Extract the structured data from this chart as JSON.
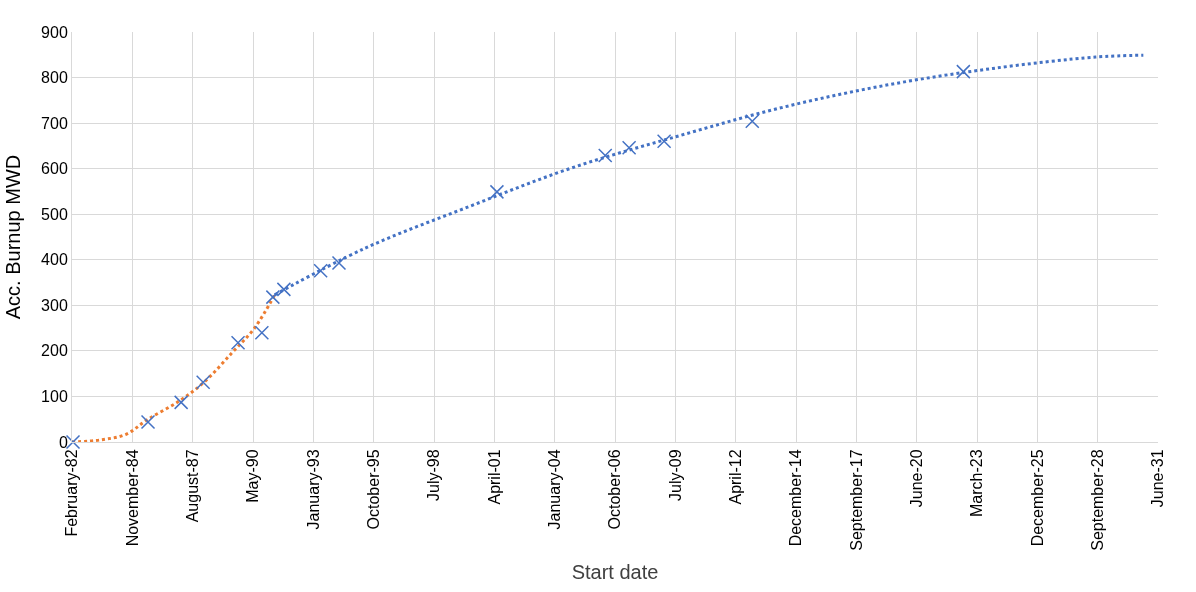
{
  "chart_data": {
    "type": "scatter",
    "xlabel": "Start date",
    "ylabel": "Acc. Burnup MWD",
    "xlim": [
      "1982-02-18",
      "2031-06-01"
    ],
    "xticks": [
      {
        "value": "1982-02-18",
        "label": "February-82"
      },
      {
        "value": "1984-11-14",
        "label": "November-84"
      },
      {
        "value": "1987-08-11",
        "label": "August-87"
      },
      {
        "value": "1990-05-07",
        "label": "May-90"
      },
      {
        "value": "1993-01-31",
        "label": "January-93"
      },
      {
        "value": "1995-10-28",
        "label": "October-95"
      },
      {
        "value": "1998-07-24",
        "label": "July-98"
      },
      {
        "value": "2001-04-19",
        "label": "April-01"
      },
      {
        "value": "2004-01-14",
        "label": "January-04"
      },
      {
        "value": "2006-10-10",
        "label": "October-06"
      },
      {
        "value": "2009-07-06",
        "label": "July-09"
      },
      {
        "value": "2012-04-01",
        "label": "April-12"
      },
      {
        "value": "2014-12-27",
        "label": "December-14"
      },
      {
        "value": "2017-09-22",
        "label": "September-17"
      },
      {
        "value": "2020-06-18",
        "label": "June-20"
      },
      {
        "value": "2023-03-15",
        "label": "March-23"
      },
      {
        "value": "2025-12-09",
        "label": "December-25"
      },
      {
        "value": "2028-09-04",
        "label": "September-28"
      },
      {
        "value": "2031-06-01",
        "label": "June-31"
      }
    ],
    "ylim": [
      0,
      900
    ],
    "yticks": [
      0,
      100,
      200,
      300,
      400,
      500,
      600,
      700,
      800,
      900
    ],
    "grid": true,
    "series": [
      {
        "type": "line",
        "color": "#ed7d31",
        "line_style": "dotted",
        "marker": "none",
        "x": [
          "1982-02-18",
          "1983-07-01",
          "1984-08-01",
          "1985-08-01",
          "1987-01-01",
          "1988-03-01",
          "1989-06-01",
          "1990-06-01",
          "1991-05-01"
        ],
        "values": [
          0,
          5,
          17,
          50,
          90,
          133,
          197,
          250,
          323
        ]
      },
      {
        "type": "line",
        "color": "#4472c4",
        "line_style": "dotted",
        "marker": "none",
        "x": [
          "1991-05-01",
          "1995-06-01",
          "2000-03-01",
          "2004-11-01",
          "2009-09-01",
          "2014-06-01",
          "2019-03-01",
          "2023-12-01",
          "2028-08-01",
          "2030-10-01"
        ],
        "values": [
          323,
          425,
          517,
          602,
          672,
          735,
          784,
          820,
          845,
          849
        ]
      },
      {
        "color": "#4472c4",
        "marker": "cross",
        "x": [
          "1982-03-07",
          "1985-08-01",
          "1987-02-01",
          "1988-02-01",
          "1989-09-01",
          "1990-10-01",
          "1991-04-01",
          "1991-10-01",
          "1993-06-01",
          "1994-04-01",
          "2001-06-01",
          "2006-05-01",
          "2007-06-01",
          "2009-01-01",
          "2013-01-01",
          "2022-08-01"
        ],
        "values": [
          0,
          44,
          87,
          131,
          218,
          240,
          318,
          335,
          376,
          393,
          549,
          629,
          646,
          660,
          704,
          813
        ]
      }
    ]
  }
}
